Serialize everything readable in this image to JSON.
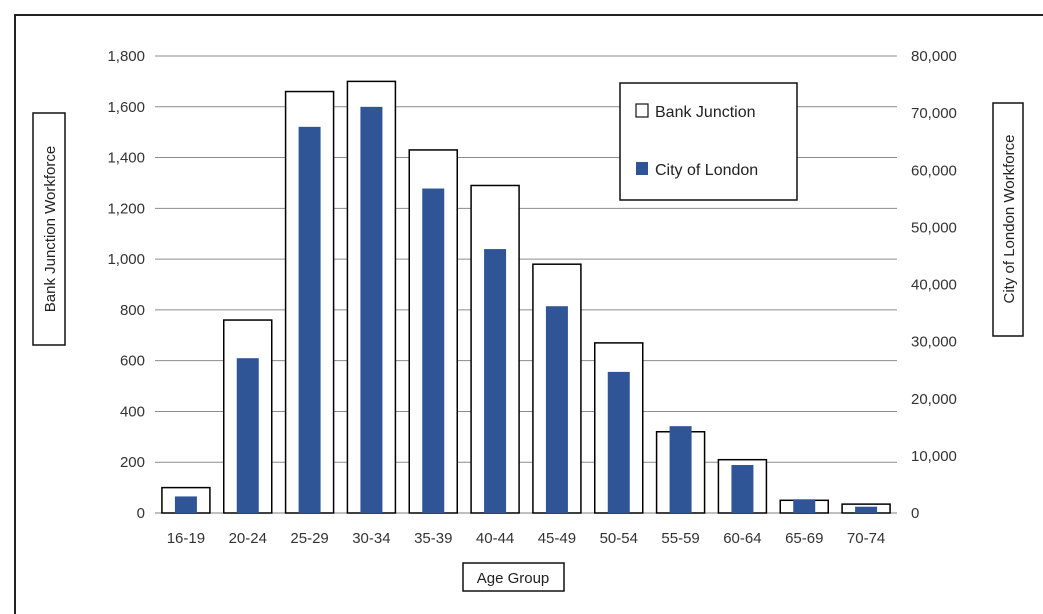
{
  "chart_data": {
    "type": "bar",
    "categories": [
      "16-19",
      "20-24",
      "25-29",
      "30-34",
      "35-39",
      "40-44",
      "45-49",
      "50-54",
      "55-59",
      "60-64",
      "65-69",
      "70-74"
    ],
    "xlabel": "Age Group",
    "ylabel_left": "Bank Junction  Workforce",
    "ylabel_right": "City of London Workforce",
    "y_left": {
      "lim": [
        0,
        1800
      ],
      "ticks": [
        0,
        200,
        400,
        600,
        800,
        1000,
        1200,
        1400,
        1600,
        1800
      ],
      "tick_labels": [
        "0",
        "200",
        "400",
        "600",
        "800",
        "1,000",
        "1,200",
        "1,400",
        "1,600",
        "1,800"
      ]
    },
    "y_right": {
      "lim": [
        0,
        80000
      ],
      "ticks": [
        0,
        10000,
        20000,
        30000,
        40000,
        50000,
        60000,
        70000,
        80000
      ],
      "tick_labels": [
        "0",
        "10,000",
        "20,000",
        "30,000",
        "40,000",
        "50,000",
        "60,000",
        "70,000",
        "80,000"
      ]
    },
    "series": [
      {
        "name": "Bank Junction",
        "axis": "left",
        "style": "hollow",
        "color": "#000000",
        "values": [
          100,
          760,
          1660,
          1700,
          1430,
          1290,
          980,
          670,
          320,
          210,
          50,
          35
        ]
      },
      {
        "name": "City of London",
        "axis": "right",
        "style": "filled",
        "color": "#2f5597",
        "values": [
          2900,
          27100,
          67600,
          71100,
          56800,
          46200,
          36200,
          24700,
          15200,
          8400,
          2400,
          1100
        ]
      }
    ],
    "grid": "horizontal",
    "legend_position": "top-right"
  }
}
